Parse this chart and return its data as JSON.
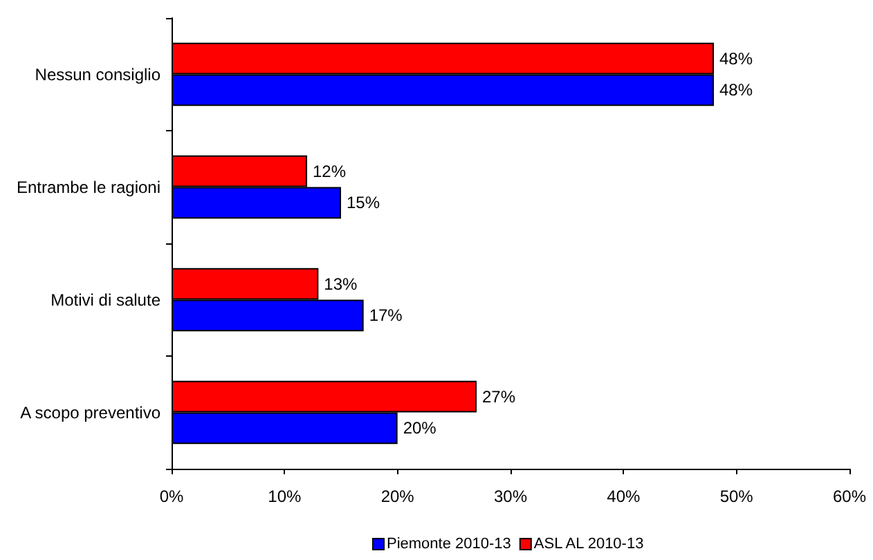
{
  "chart_data": {
    "type": "bar",
    "orientation": "horizontal",
    "categories": [
      "Nessun consiglio",
      "Entrambe le ragioni",
      "Motivi di salute",
      "A scopo preventivo"
    ],
    "series": [
      {
        "name": "Piemonte 2010-13",
        "color": "#0000ff",
        "values": [
          48,
          15,
          17,
          20
        ],
        "value_labels": [
          "48%",
          "15%",
          "17%",
          "20%"
        ]
      },
      {
        "name": "ASL AL 2010-13",
        "color": "#ff0000",
        "values": [
          48,
          12,
          13,
          27
        ],
        "value_labels": [
          "48%",
          "12%",
          "13%",
          "27%"
        ]
      }
    ],
    "xlim": [
      0,
      60
    ],
    "xticks": [
      {
        "value": 0,
        "label": "0%"
      },
      {
        "value": 10,
        "label": "10%"
      },
      {
        "value": 20,
        "label": "20%"
      },
      {
        "value": 30,
        "label": "30%"
      },
      {
        "value": 40,
        "label": "40%"
      },
      {
        "value": 50,
        "label": "50%"
      },
      {
        "value": 60,
        "label": "60%"
      }
    ],
    "grid": false,
    "legend": "bottom"
  }
}
